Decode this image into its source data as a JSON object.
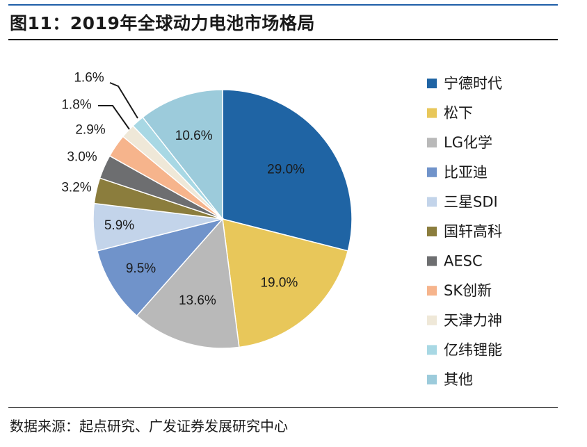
{
  "title": "图11：2019年全球动力电池市场格局",
  "source": "数据来源：起点研究、广发证券发展研究中心",
  "chart_data": {
    "type": "pie",
    "slices": [
      {
        "name": "宁德时代",
        "value": 29.0,
        "label": "29.0%",
        "color": "#1f64a4"
      },
      {
        "name": "松下",
        "value": 19.0,
        "label": "19.0%",
        "color": "#e8c75a"
      },
      {
        "name": "LG化学",
        "value": 13.6,
        "label": "13.6%",
        "color": "#b9b9b9"
      },
      {
        "name": "比亚迪",
        "value": 9.5,
        "label": "9.5%",
        "color": "#7093ca"
      },
      {
        "name": "三星SDI",
        "value": 5.9,
        "label": "5.9%",
        "color": "#c3d4ea"
      },
      {
        "name": "国轩高科",
        "value": 3.2,
        "label": "3.2%",
        "color": "#8b7d3d"
      },
      {
        "name": "AESC",
        "value": 3.0,
        "label": "3.0%",
        "color": "#6d6e70"
      },
      {
        "name": "SK创新",
        "value": 2.9,
        "label": "2.9%",
        "color": "#f6b48c"
      },
      {
        "name": "天津力神",
        "value": 1.8,
        "label": "1.8%",
        "color": "#efe8d8"
      },
      {
        "name": "亿纬锂能",
        "value": 1.6,
        "label": "1.6%",
        "color": "#a8d8e4"
      },
      {
        "name": "其他",
        "value": 10.6,
        "label": "10.6%",
        "color": "#9ccbdb"
      }
    ]
  }
}
